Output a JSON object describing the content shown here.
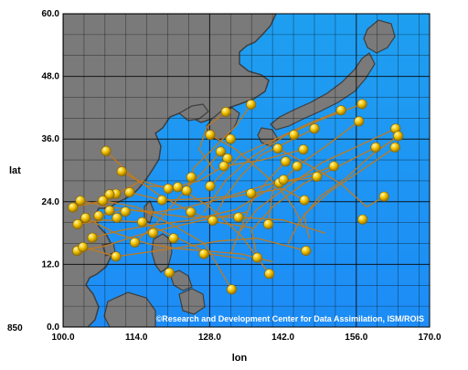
{
  "axes": {
    "xlabel": "lon",
    "ylabel": "lat",
    "xlim": [
      100,
      170
    ],
    "ylim": [
      0,
      60
    ],
    "x_ticks": [
      "100.0",
      "114.0",
      "128.0",
      "142.0",
      "156.0",
      "170.0"
    ],
    "y_ticks": [
      "60.0",
      "48.0",
      "36.0",
      "24.0",
      "12.0",
      "0.0"
    ],
    "level_label": "850",
    "grid_step_deg": 4
  },
  "credit": "©Research and Development Center for Data Assimilation, ISM/ROIS",
  "colors": {
    "ocean_top": "#1e9ff0",
    "ocean_bottom": "#1d8cf6",
    "land": "#7a7a7a",
    "land_dark": "#3e3e3e",
    "track": "#c07a1c",
    "marker": "#f2c200",
    "marker_highlight": "#fff7b0",
    "grid": "#0a0a0a"
  },
  "chart_data": {
    "type": "scatter",
    "description_of_marks": "typhoon track start points (markers) with track lines",
    "markers": [
      {
        "lon": 131.1,
        "lat": 41.2
      },
      {
        "lon": 135.9,
        "lat": 42.6
      },
      {
        "lon": 153.1,
        "lat": 41.5
      },
      {
        "lon": 157.1,
        "lat": 42.7
      },
      {
        "lon": 156.5,
        "lat": 39.4
      },
      {
        "lon": 148.0,
        "lat": 38.0
      },
      {
        "lon": 163.5,
        "lat": 38.0
      },
      {
        "lon": 164.0,
        "lat": 36.6
      },
      {
        "lon": 128.1,
        "lat": 36.8
      },
      {
        "lon": 132.0,
        "lat": 36.0
      },
      {
        "lon": 141.0,
        "lat": 34.2
      },
      {
        "lon": 145.9,
        "lat": 34.0
      },
      {
        "lon": 159.7,
        "lat": 34.4
      },
      {
        "lon": 163.4,
        "lat": 34.4
      },
      {
        "lon": 144.1,
        "lat": 36.8
      },
      {
        "lon": 130.1,
        "lat": 33.6
      },
      {
        "lon": 131.4,
        "lat": 32.3
      },
      {
        "lon": 142.5,
        "lat": 31.7
      },
      {
        "lon": 144.7,
        "lat": 30.8
      },
      {
        "lon": 108.2,
        "lat": 33.7
      },
      {
        "lon": 111.2,
        "lat": 29.8
      },
      {
        "lon": 124.5,
        "lat": 28.7
      },
      {
        "lon": 128.1,
        "lat": 27.0
      },
      {
        "lon": 141.3,
        "lat": 27.6
      },
      {
        "lon": 148.5,
        "lat": 28.8
      },
      {
        "lon": 151.7,
        "lat": 30.8
      },
      {
        "lon": 146.1,
        "lat": 24.3
      },
      {
        "lon": 121.9,
        "lat": 26.8
      },
      {
        "lon": 120.1,
        "lat": 26.5
      },
      {
        "lon": 123.6,
        "lat": 26.1
      },
      {
        "lon": 118.9,
        "lat": 24.3
      },
      {
        "lon": 112.7,
        "lat": 25.8
      },
      {
        "lon": 110.1,
        "lat": 25.5
      },
      {
        "lon": 108.9,
        "lat": 25.4
      },
      {
        "lon": 107.6,
        "lat": 24.2
      },
      {
        "lon": 103.3,
        "lat": 24.2
      },
      {
        "lon": 101.9,
        "lat": 22.9
      },
      {
        "lon": 104.3,
        "lat": 20.9
      },
      {
        "lon": 106.8,
        "lat": 21.3
      },
      {
        "lon": 108.9,
        "lat": 22.3
      },
      {
        "lon": 111.9,
        "lat": 22.1
      },
      {
        "lon": 102.8,
        "lat": 19.7
      },
      {
        "lon": 110.3,
        "lat": 20.9
      },
      {
        "lon": 115.1,
        "lat": 20.1
      },
      {
        "lon": 117.2,
        "lat": 18.0
      },
      {
        "lon": 121.1,
        "lat": 17.0
      },
      {
        "lon": 128.6,
        "lat": 20.4
      },
      {
        "lon": 133.5,
        "lat": 21.0
      },
      {
        "lon": 135.9,
        "lat": 25.6
      },
      {
        "lon": 157.2,
        "lat": 20.6
      },
      {
        "lon": 161.3,
        "lat": 25.0
      },
      {
        "lon": 139.2,
        "lat": 19.7
      },
      {
        "lon": 142.1,
        "lat": 28.2
      },
      {
        "lon": 130.7,
        "lat": 30.8
      },
      {
        "lon": 102.7,
        "lat": 14.6
      },
      {
        "lon": 103.8,
        "lat": 15.3
      },
      {
        "lon": 110.1,
        "lat": 13.5
      },
      {
        "lon": 126.9,
        "lat": 14.0
      },
      {
        "lon": 137.1,
        "lat": 13.3
      },
      {
        "lon": 146.4,
        "lat": 14.6
      },
      {
        "lon": 139.4,
        "lat": 10.2
      },
      {
        "lon": 120.3,
        "lat": 10.4
      },
      {
        "lon": 132.2,
        "lat": 7.2
      },
      {
        "lon": 124.4,
        "lat": 22.0
      },
      {
        "lon": 105.6,
        "lat": 17.1
      },
      {
        "lon": 113.7,
        "lat": 16.2
      }
    ],
    "tracks": [
      [
        [
          131.1,
          41.2
        ],
        [
          127.5,
          38.4
        ],
        [
          126.0,
          34.0
        ],
        [
          129.0,
          30.0
        ]
      ],
      [
        [
          135.9,
          42.6
        ],
        [
          133.0,
          38.5
        ],
        [
          129.0,
          34.5
        ],
        [
          125.0,
          30.5
        ],
        [
          123.6,
          26.1
        ]
      ],
      [
        [
          153.1,
          41.5
        ],
        [
          147.0,
          39.0
        ],
        [
          141.0,
          36.2
        ],
        [
          134.0,
          33.0
        ],
        [
          128.1,
          27.0
        ]
      ],
      [
        [
          157.1,
          42.7
        ],
        [
          150.0,
          40.0
        ],
        [
          143.0,
          37.0
        ],
        [
          136.0,
          32.5
        ],
        [
          131.0,
          28.0
        ],
        [
          126.9,
          22.0
        ]
      ],
      [
        [
          163.5,
          38.0
        ],
        [
          156.0,
          34.5
        ],
        [
          149.5,
          31.5
        ],
        [
          143.0,
          27.0
        ],
        [
          137.0,
          22.5
        ],
        [
          133.5,
          18.0
        ]
      ],
      [
        [
          159.7,
          34.4
        ],
        [
          153.0,
          31.0
        ],
        [
          146.0,
          27.5
        ],
        [
          140.0,
          23.0
        ],
        [
          136.0,
          18.5
        ],
        [
          137.1,
          13.3
        ]
      ],
      [
        [
          156.5,
          39.4
        ],
        [
          150.0,
          34.5
        ],
        [
          144.7,
          30.8
        ],
        [
          140.0,
          26.0
        ],
        [
          139.2,
          19.7
        ]
      ],
      [
        [
          108.2,
          33.7
        ],
        [
          113.0,
          29.0
        ],
        [
          118.0,
          25.5
        ],
        [
          124.4,
          22.0
        ],
        [
          130.0,
          20.0
        ],
        [
          136.0,
          19.0
        ]
      ],
      [
        [
          111.2,
          29.8
        ],
        [
          116.0,
          27.0
        ],
        [
          121.9,
          26.8
        ],
        [
          128.0,
          23.0
        ],
        [
          134.0,
          17.5
        ],
        [
          139.4,
          10.2
        ]
      ],
      [
        [
          101.9,
          22.9
        ],
        [
          107.6,
          24.2
        ],
        [
          114.0,
          23.0
        ],
        [
          121.0,
          19.5
        ],
        [
          127.0,
          16.0
        ],
        [
          132.2,
          7.2
        ]
      ],
      [
        [
          102.8,
          19.7
        ],
        [
          108.0,
          20.5
        ],
        [
          115.1,
          20.1
        ],
        [
          122.0,
          17.0
        ],
        [
          128.0,
          14.0
        ],
        [
          135.0,
          13.0
        ]
      ],
      [
        [
          103.3,
          24.2
        ],
        [
          109.0,
          23.0
        ],
        [
          116.0,
          22.0
        ],
        [
          124.0,
          21.0
        ],
        [
          133.5,
          21.0
        ],
        [
          142.0,
          20.5
        ],
        [
          150.0,
          18.0
        ]
      ],
      [
        [
          102.7,
          14.6
        ],
        [
          108.0,
          15.5
        ],
        [
          114.0,
          17.5
        ],
        [
          120.3,
          19.0
        ],
        [
          126.9,
          20.5
        ],
        [
          135.0,
          22.0
        ]
      ],
      [
        [
          103.8,
          15.3
        ],
        [
          110.1,
          13.5
        ],
        [
          117.2,
          14.5
        ],
        [
          124.0,
          15.5
        ],
        [
          130.0,
          16.5
        ],
        [
          137.0,
          17.0
        ],
        [
          146.4,
          14.6
        ]
      ],
      [
        [
          112.7,
          25.8
        ],
        [
          118.9,
          24.3
        ],
        [
          125.0,
          24.5
        ],
        [
          131.4,
          25.0
        ],
        [
          138.0,
          27.0
        ],
        [
          145.0,
          28.5
        ],
        [
          151.7,
          30.8
        ]
      ],
      [
        [
          110.1,
          25.5
        ],
        [
          115.0,
          28.0
        ],
        [
          120.1,
          26.5
        ],
        [
          126.0,
          28.0
        ],
        [
          130.7,
          30.8
        ],
        [
          138.0,
          32.0
        ],
        [
          145.9,
          34.0
        ]
      ],
      [
        [
          105.6,
          17.1
        ],
        [
          111.0,
          18.5
        ],
        [
          117.0,
          19.5
        ],
        [
          124.5,
          20.5
        ],
        [
          133.0,
          22.5
        ],
        [
          141.3,
          27.6
        ],
        [
          148.5,
          28.8
        ]
      ],
      [
        [
          106.8,
          21.3
        ],
        [
          112.0,
          22.5
        ],
        [
          118.0,
          22.0
        ],
        [
          124.0,
          23.0
        ],
        [
          130.0,
          24.5
        ],
        [
          136.0,
          25.6
        ],
        [
          142.0,
          26.5
        ],
        [
          146.1,
          24.3
        ]
      ],
      [
        [
          104.3,
          20.9
        ],
        [
          110.0,
          18.0
        ],
        [
          116.0,
          16.0
        ],
        [
          122.0,
          15.0
        ],
        [
          128.0,
          14.5
        ],
        [
          134.0,
          14.0
        ],
        [
          140.0,
          12.5
        ]
      ],
      [
        [
          128.1,
          36.8
        ],
        [
          133.0,
          34.0
        ],
        [
          137.0,
          30.5
        ],
        [
          141.0,
          27.0
        ],
        [
          144.0,
          23.0
        ],
        [
          146.0,
          19.0
        ]
      ],
      [
        [
          141.0,
          34.2
        ],
        [
          147.0,
          31.0
        ],
        [
          153.0,
          27.5
        ],
        [
          158.0,
          23.0
        ],
        [
          161.3,
          25.0
        ]
      ],
      [
        [
          164.0,
          36.6
        ],
        [
          159.0,
          33.0
        ],
        [
          154.0,
          28.5
        ],
        [
          149.0,
          25.0
        ],
        [
          145.0,
          20.0
        ],
        [
          143.0,
          16.0
        ]
      ],
      [
        [
          163.4,
          34.4
        ],
        [
          157.0,
          30.0
        ],
        [
          151.0,
          26.0
        ],
        [
          146.0,
          21.5
        ],
        [
          147.0,
          17.0
        ]
      ],
      [
        [
          148.0,
          38.0
        ],
        [
          143.0,
          35.5
        ],
        [
          138.0,
          33.0
        ],
        [
          134.0,
          29.0
        ],
        [
          131.0,
          25.0
        ],
        [
          128.6,
          20.4
        ]
      ],
      [
        [
          130.1,
          33.6
        ],
        [
          127.0,
          30.0
        ],
        [
          124.0,
          27.0
        ],
        [
          121.0,
          23.5
        ],
        [
          118.0,
          20.0
        ],
        [
          113.7,
          16.2
        ]
      ],
      [
        [
          142.5,
          31.7
        ],
        [
          139.0,
          28.0
        ],
        [
          136.0,
          24.0
        ],
        [
          134.0,
          19.0
        ],
        [
          132.0,
          14.0
        ]
      ]
    ]
  }
}
